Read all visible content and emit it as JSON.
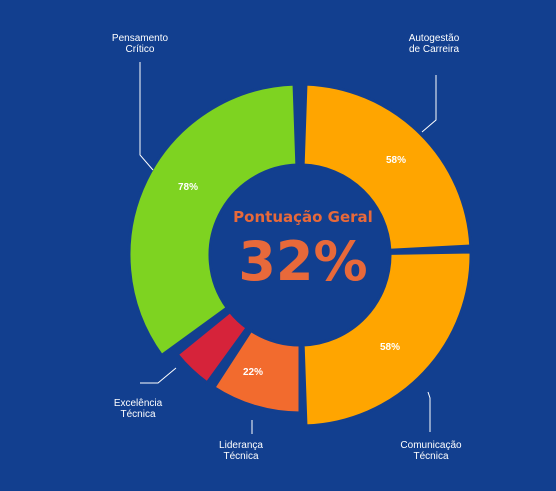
{
  "chart_data": {
    "type": "pie",
    "center_label": "Pontuação Geral",
    "center_value": "32%",
    "slices": [
      {
        "label": "Autogestão\nde Carreira",
        "value_label": "58%",
        "color": "#ffa500"
      },
      {
        "label": "Comunicação\nTécnica",
        "value_label": "58%",
        "color": "#ffa500"
      },
      {
        "label": "Liderança\nTécnica",
        "value_label": "22%",
        "color": "#f26b2e"
      },
      {
        "label": "Excelência\nTécnica",
        "value_label": "",
        "color": "#d6233a"
      },
      {
        "label": "Pensamento\nCrítico",
        "value_label": "78%",
        "color": "#7ed321"
      }
    ]
  },
  "colors": {
    "background": "#123f8f",
    "accent": "#e8693a",
    "text": "#ffffff"
  }
}
